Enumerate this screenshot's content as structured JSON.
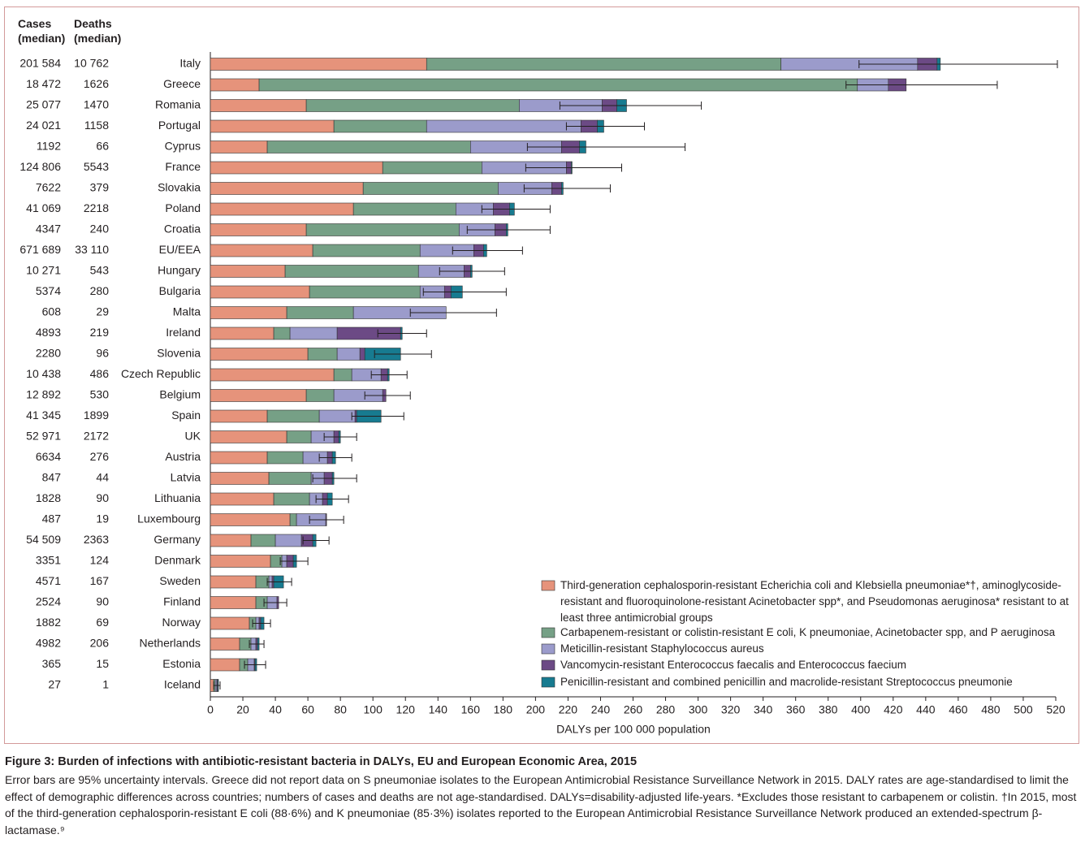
{
  "chart_data": {
    "type": "stacked-bar-horizontal",
    "columns": {
      "cases_header": "Cases (median)",
      "deaths_header": "Deaths (median)"
    },
    "categories": [
      "Italy",
      "Greece",
      "Romania",
      "Portugal",
      "Cyprus",
      "France",
      "Slovakia",
      "Poland",
      "Croatia",
      "EU/EEA",
      "Hungary",
      "Bulgaria",
      "Malta",
      "Ireland",
      "Slovenia",
      "Czech Republic",
      "Belgium",
      "Spain",
      "UK",
      "Austria",
      "Latvia",
      "Lithuania",
      "Luxembourg",
      "Germany",
      "Denmark",
      "Sweden",
      "Finland",
      "Norway",
      "Netherlands",
      "Estonia",
      "Iceland"
    ],
    "cases": [
      "201 584",
      "18 472",
      "25 077",
      "24 021",
      "1192",
      "124 806",
      "7622",
      "41 069",
      "4347",
      "671 689",
      "10 271",
      "5374",
      "608",
      "4893",
      "2280",
      "10 438",
      "12 892",
      "41 345",
      "52 971",
      "6634",
      "847",
      "1828",
      "487",
      "54 509",
      "3351",
      "4571",
      "2524",
      "1882",
      "4982",
      "365",
      "27"
    ],
    "deaths": [
      "10 762",
      "1626",
      "1470",
      "1158",
      "66",
      "5543",
      "379",
      "2218",
      "240",
      "33 110",
      "543",
      "280",
      "29",
      "219",
      "96",
      "486",
      "530",
      "1899",
      "2172",
      "276",
      "44",
      "90",
      "19",
      "2363",
      "124",
      "167",
      "90",
      "69",
      "206",
      "15",
      "1"
    ],
    "series": [
      {
        "name": "Third-generation cephalosporin-resistant Echerichia coli and Klebsiella pneumoniae*†, aminoglycoside-resistant and fluoroquinolone-resistant Acinetobacter spp*, and Pseudomonas aeruginosa* resistant to at least three antimicrobial groups",
        "color": "#e6937b",
        "values": [
          133,
          30,
          59,
          76,
          35,
          106,
          94,
          88,
          59,
          63,
          46,
          61,
          47,
          39,
          60,
          76,
          59,
          35,
          47,
          35,
          36,
          39,
          49,
          25,
          37,
          28,
          28,
          24,
          18,
          18,
          2
        ]
      },
      {
        "name": "Carbapenem-resistant or colistin-resistant E coli, K pneumoniae, Acinetobacter spp, and P aeruginosa",
        "color": "#76a086",
        "values": [
          218,
          368,
          131,
          57,
          125,
          61,
          83,
          63,
          94,
          66,
          82,
          68,
          41,
          10,
          18,
          11,
          17,
          32,
          15,
          22,
          26,
          22,
          4,
          15,
          7,
          8,
          7,
          4,
          7,
          5,
          1
        ]
      },
      {
        "name": "Meticillin-resistant Staphylococcus aureus",
        "color": "#9b9bcb",
        "values": [
          84,
          19,
          51,
          95,
          56,
          52,
          33,
          23,
          22,
          33,
          28,
          15,
          57,
          29,
          14,
          18,
          30,
          22,
          14,
          15,
          8,
          8,
          18,
          16,
          3,
          2,
          6,
          2,
          3,
          4,
          1
        ]
      },
      {
        "name": "Vancomycin-resistant Enterococcus faecalis and Enterococcus faecium",
        "color": "#6c4a85",
        "values": [
          12,
          11,
          9,
          10,
          11,
          3,
          6,
          10,
          7,
          6,
          4,
          4,
          0,
          39,
          3,
          4,
          2,
          1,
          3,
          3,
          5,
          3,
          0.5,
          7,
          4,
          1,
          1,
          1,
          1,
          0.5,
          0.5
        ]
      },
      {
        "name": "Penicillin-resistant and combined penicillin and macrolide-resistant Streptococcus pneumonie",
        "color": "#177b90",
        "values": [
          2,
          0,
          6,
          4,
          4,
          0.5,
          1,
          3,
          1,
          2,
          1,
          7,
          0,
          1,
          22,
          1,
          0,
          15,
          1,
          2,
          1,
          3,
          0,
          2,
          2,
          6,
          0,
          2,
          1,
          1,
          0.5
        ]
      }
    ],
    "ci_low": [
      399,
      391,
      215,
      219,
      195,
      194,
      193,
      167,
      158,
      149,
      141,
      131,
      123,
      103,
      101,
      99,
      95,
      87,
      70,
      67,
      63,
      65,
      61,
      57,
      43,
      35,
      33,
      26,
      24,
      21,
      2
    ],
    "ci_high": [
      521,
      484,
      302,
      267,
      292,
      253,
      246,
      209,
      209,
      192,
      181,
      182,
      176,
      133,
      136,
      121,
      123,
      119,
      90,
      87,
      90,
      85,
      82,
      73,
      60,
      50,
      47,
      37,
      33,
      34,
      6
    ],
    "xlim": [
      0,
      520
    ],
    "xticks": [
      0,
      20,
      40,
      60,
      80,
      100,
      120,
      140,
      160,
      180,
      200,
      220,
      240,
      260,
      280,
      300,
      320,
      340,
      360,
      380,
      400,
      420,
      440,
      460,
      480,
      500,
      520
    ],
    "xlabel": "DALYs per 100 000 population",
    "legend": "lower right",
    "caption_title": "Figure 3: Burden of infections with antibiotic-resistant bacteria in DALYs, EU and European Economic Area, 2015",
    "caption_notes": "Error bars are 95% uncertainty intervals. Greece did not report data on S pneumoniae isolates to the European Antimicrobial Resistance Surveillance Network in 2015. DALY rates are age-standardised to limit the effect of demographic differences across countries; numbers of cases and deaths are not age-standardised. DALYs=disability-adjusted life-years. *Excludes those resistant to carbapenem or colistin. †In 2015, most of the third-generation cephalosporin-resistant E coli (88·6%) and K pneumoniae (85·3%) isolates reported to the European Antimicrobial Resistance Surveillance Network produced an extended-spectrum β-lactamase.⁹"
  }
}
